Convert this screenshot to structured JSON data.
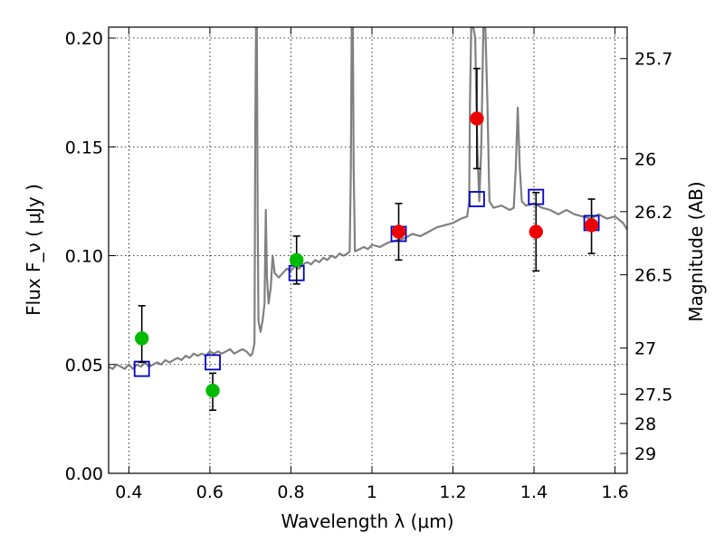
{
  "chart_data": {
    "type": "scatter",
    "xlabel": "Wavelength  λ (μm)",
    "ylabel": "Flux  F_ν  ( μJy )",
    "y2label": "Magnitude (AB)",
    "xlim": [
      0.35,
      1.63
    ],
    "ylim": [
      0.0,
      0.205
    ],
    "grid": true,
    "x_ticks": [
      {
        "value": 0.4,
        "label": "0.4"
      },
      {
        "value": 0.6,
        "label": "0.6"
      },
      {
        "value": 0.8,
        "label": "0.8"
      },
      {
        "value": 1.0,
        "label": "1"
      },
      {
        "value": 1.2,
        "label": "1.2"
      },
      {
        "value": 1.4,
        "label": "1.4"
      },
      {
        "value": 1.6,
        "label": "1.6"
      }
    ],
    "y_ticks": [
      {
        "value": 0.0,
        "label": "0.00"
      },
      {
        "value": 0.05,
        "label": "0.05"
      },
      {
        "value": 0.1,
        "label": "0.10"
      },
      {
        "value": 0.15,
        "label": "0.15"
      },
      {
        "value": 0.2,
        "label": "0.20"
      }
    ],
    "y2_ticks": [
      {
        "mag": 25.7,
        "label": "25.7"
      },
      {
        "mag": 26,
        "label": "26"
      },
      {
        "mag": 26.2,
        "label": "26.2"
      },
      {
        "mag": 26.5,
        "label": "26.5"
      },
      {
        "mag": 27,
        "label": "27"
      },
      {
        "mag": 27.5,
        "label": "27.5"
      },
      {
        "mag": 28,
        "label": "28"
      },
      {
        "mag": 29,
        "label": "29"
      }
    ],
    "series": [
      {
        "kind": "line",
        "color": "#808080",
        "points": [
          [
            0.35,
            0.049
          ],
          [
            0.36,
            0.048
          ],
          [
            0.37,
            0.05
          ],
          [
            0.38,
            0.049
          ],
          [
            0.39,
            0.048
          ],
          [
            0.4,
            0.05
          ],
          [
            0.41,
            0.048
          ],
          [
            0.42,
            0.05
          ],
          [
            0.43,
            0.049
          ],
          [
            0.44,
            0.051
          ],
          [
            0.45,
            0.049
          ],
          [
            0.46,
            0.05
          ],
          [
            0.47,
            0.051
          ],
          [
            0.48,
            0.05
          ],
          [
            0.49,
            0.052
          ],
          [
            0.5,
            0.051
          ],
          [
            0.51,
            0.052
          ],
          [
            0.52,
            0.053
          ],
          [
            0.53,
            0.052
          ],
          [
            0.54,
            0.054
          ],
          [
            0.55,
            0.053
          ],
          [
            0.56,
            0.055
          ],
          [
            0.57,
            0.054
          ],
          [
            0.58,
            0.055
          ],
          [
            0.59,
            0.054
          ],
          [
            0.6,
            0.056
          ],
          [
            0.61,
            0.055
          ],
          [
            0.62,
            0.056
          ],
          [
            0.63,
            0.055
          ],
          [
            0.64,
            0.056
          ],
          [
            0.65,
            0.057
          ],
          [
            0.66,
            0.055
          ],
          [
            0.67,
            0.056
          ],
          [
            0.68,
            0.057
          ],
          [
            0.69,
            0.056
          ],
          [
            0.7,
            0.054
          ],
          [
            0.705,
            0.055
          ],
          [
            0.71,
            0.06
          ],
          [
            0.712,
            0.16
          ],
          [
            0.714,
            0.205
          ],
          [
            0.716,
            0.205
          ],
          [
            0.718,
            0.12
          ],
          [
            0.72,
            0.07
          ],
          [
            0.725,
            0.065
          ],
          [
            0.73,
            0.07
          ],
          [
            0.735,
            0.078
          ],
          [
            0.738,
            0.121
          ],
          [
            0.741,
            0.09
          ],
          [
            0.745,
            0.078
          ],
          [
            0.75,
            0.085
          ],
          [
            0.755,
            0.1
          ],
          [
            0.76,
            0.092
          ],
          [
            0.77,
            0.09
          ],
          [
            0.78,
            0.092
          ],
          [
            0.79,
            0.094
          ],
          [
            0.8,
            0.093
          ],
          [
            0.81,
            0.095
          ],
          [
            0.82,
            0.094
          ],
          [
            0.83,
            0.096
          ],
          [
            0.84,
            0.097
          ],
          [
            0.85,
            0.096
          ],
          [
            0.86,
            0.098
          ],
          [
            0.87,
            0.097
          ],
          [
            0.88,
            0.099
          ],
          [
            0.89,
            0.098
          ],
          [
            0.9,
            0.1
          ],
          [
            0.91,
            0.099
          ],
          [
            0.92,
            0.101
          ],
          [
            0.93,
            0.1
          ],
          [
            0.94,
            0.101
          ],
          [
            0.945,
            0.102
          ],
          [
            0.948,
            0.14
          ],
          [
            0.95,
            0.205
          ],
          [
            0.953,
            0.205
          ],
          [
            0.955,
            0.14
          ],
          [
            0.958,
            0.102
          ],
          [
            0.97,
            0.103
          ],
          [
            0.98,
            0.104
          ],
          [
            0.99,
            0.103
          ],
          [
            1.0,
            0.105
          ],
          [
            1.02,
            0.104
          ],
          [
            1.04,
            0.106
          ],
          [
            1.06,
            0.107
          ],
          [
            1.08,
            0.108
          ],
          [
            1.1,
            0.11
          ],
          [
            1.12,
            0.109
          ],
          [
            1.14,
            0.111
          ],
          [
            1.16,
            0.113
          ],
          [
            1.18,
            0.114
          ],
          [
            1.2,
            0.115
          ],
          [
            1.22,
            0.117
          ],
          [
            1.235,
            0.118
          ],
          [
            1.24,
            0.125
          ],
          [
            1.242,
            0.17
          ],
          [
            1.245,
            0.205
          ],
          [
            1.25,
            0.205
          ],
          [
            1.255,
            0.2
          ],
          [
            1.26,
            0.15
          ],
          [
            1.265,
            0.125
          ],
          [
            1.27,
            0.15
          ],
          [
            1.275,
            0.205
          ],
          [
            1.28,
            0.205
          ],
          [
            1.285,
            0.17
          ],
          [
            1.29,
            0.125
          ],
          [
            1.3,
            0.122
          ],
          [
            1.32,
            0.123
          ],
          [
            1.34,
            0.121
          ],
          [
            1.35,
            0.122
          ],
          [
            1.355,
            0.14
          ],
          [
            1.36,
            0.168
          ],
          [
            1.365,
            0.14
          ],
          [
            1.37,
            0.125
          ],
          [
            1.38,
            0.123
          ],
          [
            1.4,
            0.124
          ],
          [
            1.42,
            0.122
          ],
          [
            1.44,
            0.121
          ],
          [
            1.46,
            0.119
          ],
          [
            1.48,
            0.121
          ],
          [
            1.5,
            0.119
          ],
          [
            1.52,
            0.118
          ],
          [
            1.54,
            0.117
          ],
          [
            1.56,
            0.119
          ],
          [
            1.58,
            0.117
          ],
          [
            1.6,
            0.118
          ],
          [
            1.62,
            0.115
          ],
          [
            1.63,
            0.112
          ]
        ]
      },
      {
        "kind": "squares",
        "color": "#0000cc",
        "points": [
          [
            0.432,
            0.048
          ],
          [
            0.607,
            0.051
          ],
          [
            0.814,
            0.092
          ],
          [
            1.066,
            0.11
          ],
          [
            1.259,
            0.126
          ],
          [
            1.405,
            0.127
          ],
          [
            1.542,
            0.115
          ]
        ]
      },
      {
        "kind": "circles-errorbars",
        "color": "#00bb00",
        "points": [
          {
            "x": 0.432,
            "y": 0.062,
            "yerr": [
              0.051,
              0.077
            ]
          },
          {
            "x": 0.607,
            "y": 0.038,
            "yerr": [
              0.029,
              0.046
            ]
          },
          {
            "x": 0.814,
            "y": 0.098,
            "yerr": [
              0.087,
              0.109
            ]
          }
        ]
      },
      {
        "kind": "circles-errorbars",
        "color": "#ee0000",
        "points": [
          {
            "x": 1.066,
            "y": 0.111,
            "yerr": [
              0.098,
              0.124
            ]
          },
          {
            "x": 1.259,
            "y": 0.163,
            "yerr": [
              0.14,
              0.186
            ]
          },
          {
            "x": 1.405,
            "y": 0.111,
            "yerr": [
              0.093,
              0.129
            ]
          },
          {
            "x": 1.542,
            "y": 0.114,
            "yerr": [
              0.101,
              0.126
            ]
          }
        ]
      }
    ]
  }
}
